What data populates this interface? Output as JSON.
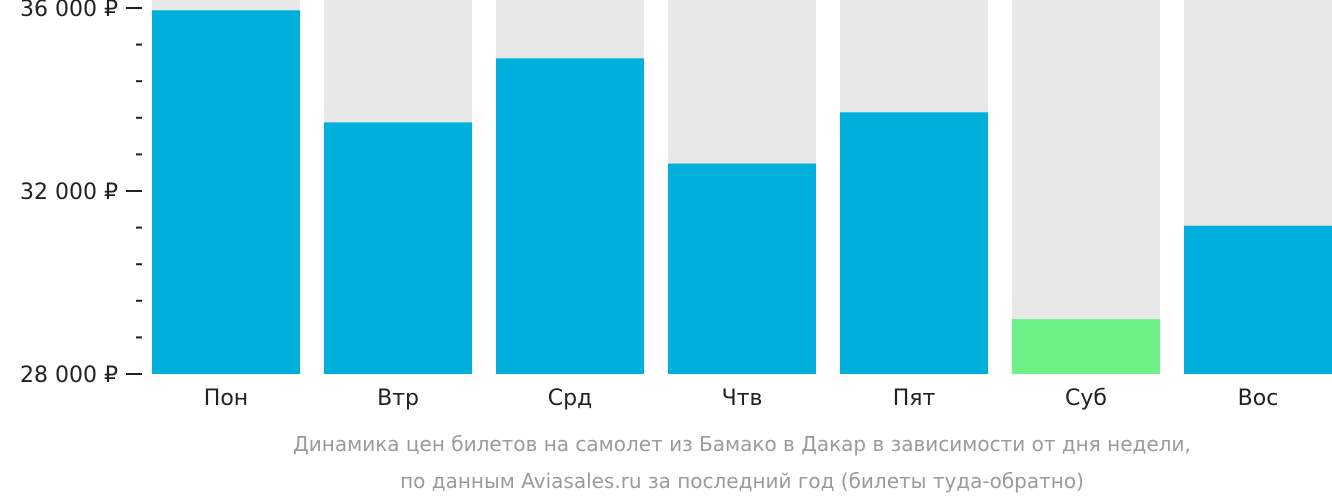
{
  "chart_data": {
    "type": "bar",
    "categories": [
      "Пон",
      "Втр",
      "Срд",
      "Чтв",
      "Пят",
      "Суб",
      "Вос"
    ],
    "values": [
      35950,
      33500,
      34900,
      32600,
      33720,
      29200,
      31240
    ],
    "ylim": [
      28000,
      36000
    ],
    "y_ticks": [
      {
        "value": 28000,
        "label": "28 000 ₽"
      },
      {
        "value": 32000,
        "label": "32 000 ₽"
      },
      {
        "value": 36000,
        "label": "36 000 ₽"
      }
    ],
    "minor_tick_step": 800,
    "caption": [
      "Динамика цен билетов на самолет из Бамако в Дакар в зависимости от дня недели,",
      "по данным Aviasales.ru за последний год (билеты туда-обратно)"
    ],
    "grid": false,
    "highlight_index": 5,
    "colors": {
      "bar": "#00b0dc",
      "highlight": "#6cf286",
      "background_column": "#e8e8e8",
      "axis": "#222222",
      "caption": "#9b9b9b"
    }
  }
}
